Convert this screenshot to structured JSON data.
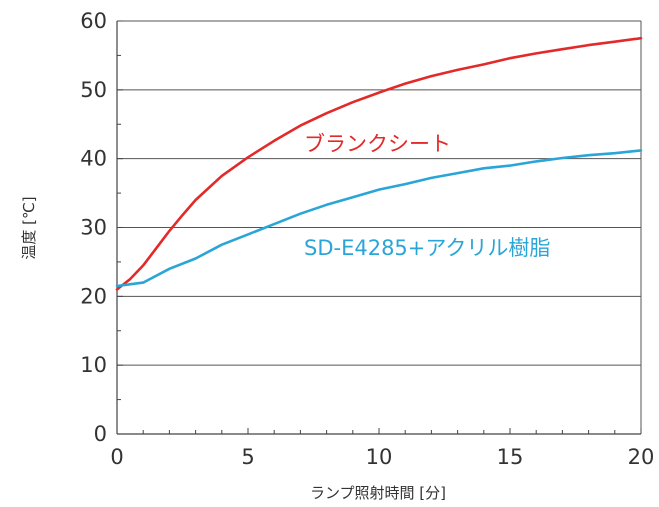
{
  "chart_data": {
    "type": "line",
    "title": "",
    "xlabel": "ランプ照射時間 [分]",
    "ylabel": "温度 [℃]",
    "xlim": [
      0,
      20
    ],
    "ylim": [
      0,
      60
    ],
    "x_ticks": [
      0,
      5,
      10,
      15,
      20
    ],
    "y_ticks": [
      0,
      10,
      20,
      30,
      40,
      50,
      60
    ],
    "x_tick_labels": [
      "0",
      "5",
      "10",
      "15",
      "20"
    ],
    "y_tick_labels": [
      "0",
      "10",
      "20",
      "30",
      "40",
      "50",
      "60"
    ],
    "grid": "horizontal",
    "legend": "inline labels",
    "series": [
      {
        "name": "ブランクシート",
        "color": "#e32a2a",
        "x": [
          0,
          0.5,
          1,
          1.5,
          2,
          2.5,
          3,
          4,
          5,
          6,
          7,
          8,
          9,
          10,
          11,
          12,
          13,
          14,
          15,
          16,
          17,
          18,
          19,
          20
        ],
        "y": [
          21,
          22.5,
          24.5,
          27,
          29.5,
          31.8,
          34,
          37.5,
          40.2,
          42.6,
          44.8,
          46.6,
          48.2,
          49.6,
          50.9,
          52,
          52.9,
          53.7,
          54.6,
          55.3,
          55.9,
          56.5,
          57,
          57.5
        ]
      },
      {
        "name": "SD-E4285+アクリル樹脂",
        "color": "#2aa5d8",
        "x": [
          0,
          1,
          2,
          3,
          4,
          5,
          6,
          7,
          8,
          9,
          10,
          11,
          12,
          13,
          14,
          15,
          16,
          17,
          18,
          19,
          20
        ],
        "y": [
          21.5,
          22,
          24,
          25.5,
          27.5,
          29,
          30.5,
          32,
          33.3,
          34.4,
          35.5,
          36.3,
          37.2,
          37.9,
          38.6,
          39,
          39.6,
          40.1,
          40.5,
          40.8,
          41.2
        ]
      }
    ]
  }
}
